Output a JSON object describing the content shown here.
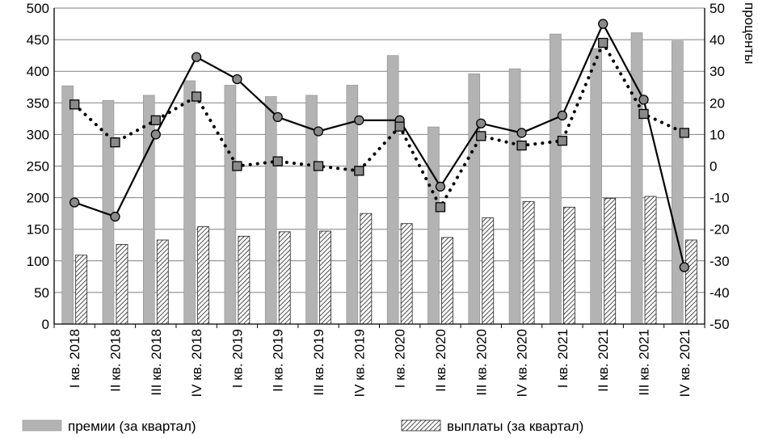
{
  "chart_data": {
    "type": "bar",
    "categories": [
      "I кв. 2018",
      "II кв. 2018",
      "III кв. 2018",
      "IV кв. 2018",
      "I кв. 2019",
      "II кв. 2019",
      "III кв. 2019",
      "IV кв. 2019",
      "I кв. 2020",
      "II кв. 2020",
      "III кв. 2020",
      "IV кв. 2020",
      "I кв. 2021",
      "II кв. 2021",
      "III кв. 2021",
      "IV кв. 2021"
    ],
    "series": [
      {
        "name": "премии (за квартал)",
        "kind": "bar",
        "axis": "left",
        "color": "#b3b3b3",
        "values": [
          377,
          354,
          362,
          385,
          378,
          360,
          362,
          378,
          425,
          312,
          396,
          404,
          459,
          436,
          461,
          448
        ]
      },
      {
        "name": "выплаты (за квартал)",
        "kind": "bar",
        "axis": "left",
        "pattern": "hatched",
        "values": [
          109,
          126,
          133,
          154,
          139,
          146,
          147,
          175,
          159,
          137,
          168,
          194,
          185,
          199,
          202,
          133
        ]
      },
      {
        "name": "",
        "kind": "line",
        "style": "solid",
        "marker": "circle",
        "axis": "right",
        "values": [
          -11.5,
          -16,
          10,
          34.5,
          27.5,
          15.5,
          11,
          14.5,
          14.5,
          -6.5,
          13.5,
          10.5,
          16,
          45,
          21,
          -32
        ]
      },
      {
        "name": "",
        "kind": "line",
        "style": "dotted",
        "marker": "square",
        "axis": "right",
        "values": [
          19.5,
          7.5,
          14.5,
          22,
          0,
          1.5,
          0,
          -1.5,
          12.5,
          -13,
          9.5,
          6.5,
          8,
          39,
          16.5,
          10.5
        ]
      }
    ],
    "ylim": [
      0,
      500
    ],
    "yticks": [
      "0",
      "50",
      "100",
      "150",
      "200",
      "250",
      "300",
      "350",
      "400",
      "450",
      "500"
    ],
    "y2lim": [
      -50,
      50
    ],
    "y2ticks": [
      "-50",
      "-40",
      "-30",
      "-20",
      "-10",
      "0",
      "10",
      "20",
      "30",
      "40",
      "50"
    ],
    "y2label": "проценты",
    "legend": "bottom",
    "grid": "horizontal"
  }
}
